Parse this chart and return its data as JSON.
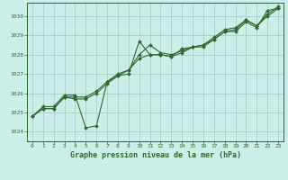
{
  "background_color": "#cceee8",
  "grid_color": "#aad4ce",
  "line_color": "#2d6a2d",
  "title": "Graphe pression niveau de la mer (hPa)",
  "xlim": [
    -0.5,
    23.5
  ],
  "ylim": [
    1023.5,
    1030.7
  ],
  "yticks": [
    1024,
    1025,
    1026,
    1027,
    1028,
    1029,
    1030
  ],
  "xticks": [
    0,
    1,
    2,
    3,
    4,
    5,
    6,
    7,
    8,
    9,
    10,
    11,
    12,
    13,
    14,
    15,
    16,
    17,
    18,
    19,
    20,
    21,
    22,
    23
  ],
  "line1": {
    "x": [
      0,
      1,
      2,
      3,
      4,
      5,
      6,
      7,
      8,
      9,
      10,
      11,
      12,
      13,
      14,
      15,
      16,
      17,
      18,
      19,
      20,
      21,
      22,
      23
    ],
    "y": [
      1024.8,
      1025.3,
      1025.3,
      1025.9,
      1025.9,
      1024.2,
      1024.3,
      1026.6,
      1026.9,
      1027.0,
      1028.7,
      1028.0,
      1028.0,
      1027.9,
      1028.3,
      1028.4,
      1028.4,
      1028.8,
      1029.2,
      1029.2,
      1029.7,
      1029.4,
      1030.3,
      1030.4
    ]
  },
  "line2": {
    "x": [
      0,
      1,
      2,
      3,
      4,
      5,
      6,
      7,
      8,
      9,
      10,
      11,
      12,
      13,
      14,
      15,
      16,
      17,
      18,
      19,
      20,
      21,
      22,
      23
    ],
    "y": [
      1024.8,
      1025.2,
      1025.2,
      1025.8,
      1025.7,
      1025.7,
      1026.0,
      1026.5,
      1026.9,
      1027.2,
      1027.8,
      1028.0,
      1028.0,
      1027.9,
      1028.1,
      1028.4,
      1028.5,
      1028.8,
      1029.2,
      1029.3,
      1029.8,
      1029.5,
      1030.0,
      1030.4
    ]
  },
  "line3": {
    "x": [
      0,
      1,
      2,
      3,
      4,
      5,
      6,
      7,
      8,
      9,
      10,
      11,
      12,
      13,
      14,
      15,
      16,
      17,
      18,
      19,
      20,
      21,
      22,
      23
    ],
    "y": [
      1024.8,
      1025.2,
      1025.2,
      1025.8,
      1025.8,
      1025.8,
      1026.1,
      1026.6,
      1027.0,
      1027.2,
      1028.0,
      1028.5,
      1028.1,
      1028.0,
      1028.2,
      1028.4,
      1028.5,
      1028.9,
      1029.3,
      1029.4,
      1029.8,
      1029.5,
      1030.1,
      1030.5
    ]
  }
}
